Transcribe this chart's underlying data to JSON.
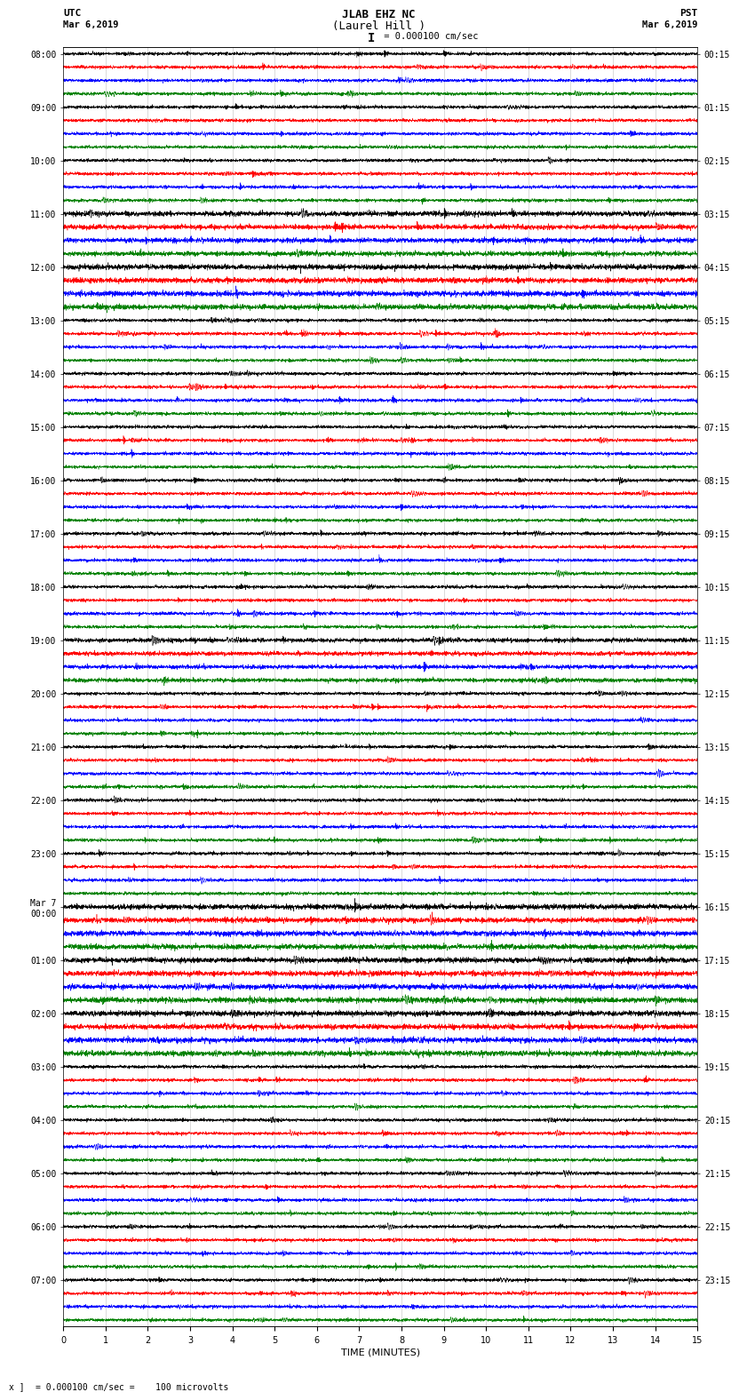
{
  "title_line1": "JLAB EHZ NC",
  "title_line2": "(Laurel Hill )",
  "scale_label": "I = 0.000100 cm/sec",
  "utc_label": "UTC",
  "pst_label": "PST",
  "date_left": "Mar 6,2019",
  "date_right": "Mar 6,2019",
  "xlabel": "TIME (MINUTES)",
  "footer": "x ] = 0.000100 cm/sec =    100 microvolts",
  "left_times": [
    "08:00",
    "09:00",
    "10:00",
    "11:00",
    "12:00",
    "13:00",
    "14:00",
    "15:00",
    "16:00",
    "17:00",
    "18:00",
    "19:00",
    "20:00",
    "21:00",
    "22:00",
    "23:00",
    "Mar 7\n00:00",
    "01:00",
    "02:00",
    "03:00",
    "04:00",
    "05:00",
    "06:00",
    "07:00"
  ],
  "right_times": [
    "00:15",
    "01:15",
    "02:15",
    "03:15",
    "04:15",
    "05:15",
    "06:15",
    "07:15",
    "08:15",
    "09:15",
    "10:15",
    "11:15",
    "12:15",
    "13:15",
    "14:15",
    "15:15",
    "16:15",
    "17:15",
    "18:15",
    "19:15",
    "20:15",
    "21:15",
    "22:15",
    "23:15"
  ],
  "n_rows": 24,
  "traces_per_row": 4,
  "colors": [
    "black",
    "red",
    "blue",
    "green"
  ],
  "bg_color": "#ffffff",
  "plot_bg": "#ffffff",
  "duration_minutes": 15,
  "samples_per_trace": 4500,
  "fig_width": 8.5,
  "fig_height": 16.13,
  "dpi": 100,
  "xlim": [
    0,
    15
  ],
  "xticks": [
    0,
    1,
    2,
    3,
    4,
    5,
    6,
    7,
    8,
    9,
    10,
    11,
    12,
    13,
    14,
    15
  ],
  "title_fontsize": 9,
  "label_fontsize": 7,
  "tick_fontsize": 7,
  "trace_amplitude": 0.32,
  "noise_std": 0.055
}
